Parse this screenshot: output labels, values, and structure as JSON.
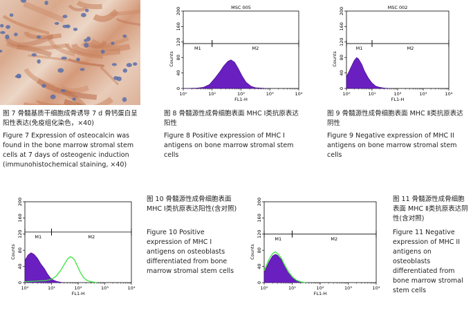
{
  "fig7": {
    "caption_zh": "图 7  骨髓基质干细胞成骨诱导 7 d 骨钙蛋白呈阳性表达(免疫组化染色，×40)",
    "caption_en": "Figure 7  Expression of osteocalcin was found in the bone marrow stromal stem cells at 7 days of osteogenic induction (immunohistochemical staining, ×40)"
  },
  "fig8": {
    "plot_title": "MSC 005",
    "caption_zh": "图 8  骨髓源性成骨细胞表面 MHC Ⅰ类抗原表达阳性",
    "caption_en": "Figure 8  Positive expression of MHC I antigens on bone marrow stromal stem cells"
  },
  "fig9": {
    "plot_title": "MSC 002",
    "caption_zh": "图 9  骨髓源性成骨细胞表面 MHC Ⅱ类抗原表达阴性",
    "caption_en": "Figure 9  Negative expression of MHC II antigens on bone marrow stromal stem cells"
  },
  "fig10": {
    "caption_zh": "图 10  骨髓源性成骨细胞表面 MHC Ⅰ类抗原表达阳性(含对照)",
    "caption_en": "Figure 10  Positive expression of MHC I antigens on osteoblasts differentiated from bone marrow stromal stem cells"
  },
  "fig11": {
    "caption_zh": "图 11  骨髓源性成骨细胞表面 MHC Ⅱ类抗原表达阴性(含对照)",
    "caption_en": "Figure 11  Negative expression of MHC II antigens on osteoblasts differentiated from bone marrow stromal stem cells"
  },
  "chart_data": [
    {
      "type": "area",
      "id": "fig8",
      "title": "MSC 005",
      "xlabel": "FL1-H",
      "ylabel": "Counts",
      "x_scale": "log",
      "xlim": [
        1,
        10000
      ],
      "ylim": [
        0,
        200
      ],
      "y_ticks": [
        0,
        40,
        80,
        120,
        160,
        200
      ],
      "x_tick_labels": [
        "10⁰",
        "10¹",
        "10²",
        "10³",
        "10⁴"
      ],
      "markers": [
        {
          "name": "M1",
          "range": [
            1,
            10
          ]
        },
        {
          "name": "M2",
          "range": [
            10,
            10000
          ]
        }
      ],
      "series": [
        {
          "color": "#6a1fc0",
          "x": [
            1,
            3,
            5,
            8,
            12,
            18,
            25,
            35,
            45,
            60,
            80,
            110,
            150,
            220,
            320,
            500,
            800
          ],
          "y": [
            0,
            1,
            3,
            10,
            25,
            42,
            58,
            70,
            74,
            68,
            52,
            32,
            16,
            6,
            2,
            1,
            0
          ]
        }
      ]
    },
    {
      "type": "area",
      "id": "fig9",
      "title": "MSC 002",
      "xlabel": "FL1-H",
      "ylabel": "Counts",
      "x_scale": "log",
      "xlim": [
        1,
        10000
      ],
      "ylim": [
        0,
        200
      ],
      "y_ticks": [
        0,
        40,
        80,
        120,
        160,
        200
      ],
      "x_tick_labels": [
        "10⁰",
        "10¹",
        "10²",
        "10³",
        "10⁴"
      ],
      "markers": [
        {
          "name": "M1",
          "range": [
            1,
            10
          ]
        },
        {
          "name": "M2",
          "range": [
            10,
            10000
          ]
        }
      ],
      "series": [
        {
          "color": "#6a1fc0",
          "x": [
            1,
            1.5,
            2,
            2.5,
            3,
            4,
            5,
            7,
            10,
            14,
            20,
            30,
            50
          ],
          "y": [
            30,
            55,
            72,
            80,
            76,
            62,
            46,
            28,
            14,
            6,
            3,
            1,
            0
          ]
        }
      ]
    },
    {
      "type": "area",
      "id": "fig10",
      "xlabel": "FL1-H",
      "ylabel": "Counts",
      "x_scale": "log",
      "xlim": [
        1,
        10000
      ],
      "ylim": [
        0,
        200
      ],
      "y_ticks": [
        0,
        40,
        80,
        120,
        160,
        200
      ],
      "x_tick_labels": [
        "10⁰",
        "10¹",
        "10²",
        "10³",
        "10⁴"
      ],
      "markers": [
        {
          "name": "M1",
          "range": [
            1,
            10
          ]
        },
        {
          "name": "M2",
          "range": [
            10,
            10000
          ]
        }
      ],
      "series": [
        {
          "style": "filled",
          "color": "#6a1fc0",
          "x": [
            1,
            1.3,
            1.7,
            2.2,
            3,
            4,
            5.5,
            7,
            9,
            12,
            16,
            22,
            30
          ],
          "y": [
            55,
            68,
            74,
            70,
            60,
            46,
            34,
            22,
            12,
            6,
            3,
            1,
            0
          ]
        },
        {
          "style": "outline",
          "color": "#39e639",
          "x": [
            1,
            3,
            6,
            10,
            15,
            22,
            30,
            40,
            50,
            60,
            75,
            95,
            120,
            160,
            220,
            320,
            500
          ],
          "y": [
            2,
            4,
            5,
            8,
            16,
            30,
            45,
            58,
            64,
            62,
            55,
            40,
            26,
            12,
            5,
            2,
            0
          ]
        }
      ]
    },
    {
      "type": "area",
      "id": "fig11",
      "xlabel": "FL1-H",
      "ylabel": "Counts",
      "x_scale": "log",
      "xlim": [
        1,
        10000
      ],
      "ylim": [
        0,
        200
      ],
      "y_ticks": [
        0,
        40,
        80,
        120,
        160,
        200
      ],
      "x_tick_labels": [
        "10⁰",
        "10¹",
        "10²",
        "10³",
        "10⁴"
      ],
      "markers": [
        {
          "name": "M1",
          "range": [
            1,
            10
          ]
        },
        {
          "name": "M2",
          "range": [
            10,
            10000
          ]
        }
      ],
      "series": [
        {
          "style": "filled",
          "color": "#6a1fc0",
          "x": [
            1,
            1.5,
            2,
            2.5,
            3,
            4,
            5,
            7,
            10,
            14,
            20,
            30
          ],
          "y": [
            25,
            52,
            66,
            70,
            68,
            58,
            44,
            26,
            12,
            5,
            2,
            0
          ]
        },
        {
          "style": "outline",
          "color": "#39e639",
          "x": [
            1,
            1.5,
            2,
            2.5,
            3,
            4,
            5,
            7,
            10,
            14,
            20,
            30
          ],
          "y": [
            30,
            58,
            72,
            76,
            72,
            62,
            48,
            30,
            15,
            6,
            2,
            0
          ]
        }
      ]
    }
  ]
}
